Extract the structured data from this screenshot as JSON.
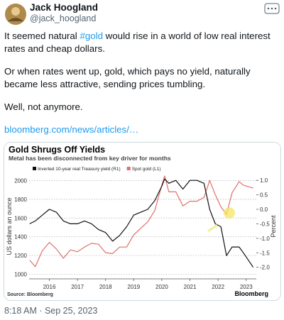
{
  "tweet": {
    "author": {
      "name": "Jack Hoogland",
      "handle": "@jack_hoogland"
    },
    "text": {
      "p1_start": "It seemed natural ",
      "hashtag": "#gold",
      "p1_end": " would rise in a world of low real interest rates and cheap dollars.",
      "p2": "Or when rates went up, gold, which pays no yield, naturally became less attractive, sending prices tumbling.",
      "p3": "Well, not anymore.",
      "link": "bloomberg.com/news/articles/…"
    },
    "timestamp": "8:18 AM · Sep 25, 2023"
  },
  "chart_data": {
    "type": "line",
    "title": "Gold Shrugs Off Yields",
    "subtitle": "Metal has been disconnected from key driver for months",
    "y_label": "US dollars an ounce",
    "y2_label": "Percent",
    "source": "Source: Bloomberg",
    "brand": "Bloomberg",
    "x": [
      2015.8,
      2016.0,
      2016.25,
      2016.5,
      2016.75,
      2017.0,
      2017.25,
      2017.5,
      2017.75,
      2018.0,
      2018.25,
      2018.5,
      2018.75,
      2019.0,
      2019.25,
      2019.5,
      2019.75,
      2020.0,
      2020.25,
      2020.5,
      2020.6,
      2020.75,
      2021.0,
      2021.25,
      2021.5,
      2021.75,
      2022.0,
      2022.2,
      2022.4,
      2022.6,
      2022.8,
      2023.0,
      2023.25,
      2023.4,
      2023.75
    ],
    "series": [
      {
        "name": "Inverted 10-year real Treasury yield (R1)",
        "color": "#111111",
        "axis": "y2",
        "values": [
          -0.5,
          -0.4,
          -0.2,
          0.0,
          -0.1,
          -0.4,
          -0.5,
          -0.5,
          -0.4,
          -0.5,
          -0.7,
          -0.8,
          -1.1,
          -0.9,
          -0.6,
          -0.2,
          -0.1,
          0.0,
          0.3,
          0.8,
          1.05,
          0.9,
          1.0,
          0.7,
          1.0,
          1.0,
          0.9,
          0.0,
          -0.5,
          -0.6,
          -1.6,
          -1.3,
          -1.3,
          -1.5,
          -2.0
        ]
      },
      {
        "name": "Spot gold (L1)",
        "color": "#e0706a",
        "values": [
          1150,
          1080,
          1250,
          1340,
          1270,
          1170,
          1260,
          1240,
          1290,
          1330,
          1320,
          1230,
          1220,
          1290,
          1290,
          1420,
          1490,
          1560,
          1680,
          1950,
          2050,
          1880,
          1880,
          1730,
          1780,
          1780,
          1820,
          2000,
          1850,
          1720,
          1640,
          1870,
          1990,
          1950,
          1920
        ]
      }
    ],
    "xlim": [
      2015.78,
      2023.86
    ],
    "xticks": [
      {
        "value": 2016.5,
        "label": "2016"
      },
      {
        "value": 2017.5,
        "label": "2017"
      },
      {
        "value": 2018.5,
        "label": "2018"
      },
      {
        "value": 2019.5,
        "label": "2019"
      },
      {
        "value": 2020.5,
        "label": "2020"
      },
      {
        "value": 2021.5,
        "label": "2021"
      },
      {
        "value": 2022.5,
        "label": "2022"
      },
      {
        "value": 2023.5,
        "label": "2023"
      }
    ],
    "ylim": [
      950,
      2080
    ],
    "yticks": [
      1000,
      1200,
      1400,
      1600,
      1800,
      2000
    ],
    "y2lim": [
      -2.4,
      1.25
    ],
    "y2ticks": [
      {
        "value": 1,
        "label": "1.0"
      },
      0.5,
      {
        "value": 0,
        "label": "0.0"
      },
      -0.5,
      {
        "value": -1,
        "label": "-1.0"
      },
      -1.5,
      {
        "value": -2,
        "label": "-2.0"
      }
    ],
    "grid": true
  }
}
